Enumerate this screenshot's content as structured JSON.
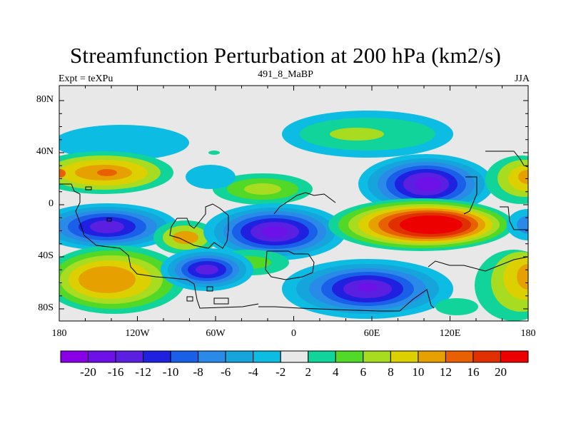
{
  "chart_data": {
    "type": "heatmap",
    "title": "Streamfunction Perturbation at 200 hPa (km2/s)",
    "subtitle_left": "Expt = teXPu",
    "subtitle_center": "491_8_MaBP",
    "subtitle_right": "JJA",
    "x_ticks": [
      "180",
      "120W",
      "60W",
      "0",
      "60E",
      "120E",
      "180"
    ],
    "y_ticks": [
      "80N",
      "40N",
      "0",
      "40S",
      "80S"
    ],
    "colorbar": {
      "labels": [
        "-20",
        "-16",
        "-12",
        "-10",
        "-8",
        "-6",
        "-4",
        "-2",
        "2",
        "4",
        "6",
        "8",
        "10",
        "12",
        "16",
        "20"
      ],
      "colors": [
        "#8a00e6",
        "#6e10e8",
        "#5a1fe0",
        "#2020e0",
        "#1a5fe8",
        "#2a8ae8",
        "#15a4dc",
        "#0cbce2",
        "#e8e8e8",
        "#10d49a",
        "#52d826",
        "#a8dc20",
        "#dcd000",
        "#e6a000",
        "#e86000",
        "#e03000",
        "#ec0000"
      ]
    },
    "cells": [
      {
        "lon": -175,
        "lat": 22,
        "value": 10
      },
      {
        "lon": -140,
        "lat": 22,
        "value": 14
      },
      {
        "lon": -138,
        "lat": -15,
        "value": -16
      },
      {
        "lon": -155,
        "lat": -55,
        "value": 12
      },
      {
        "lon": -78,
        "lat": -50,
        "value": -16
      },
      {
        "lon": -85,
        "lat": -22,
        "value": 10
      },
      {
        "lon": -15,
        "lat": -20,
        "value": -18
      },
      {
        "lon": -20,
        "lat": 10,
        "value": 8
      },
      {
        "lon": -10,
        "lat": -42,
        "value": 4
      },
      {
        "lon": 40,
        "lat": 50,
        "value": 6
      },
      {
        "lon": 60,
        "lat": -60,
        "value": -18
      },
      {
        "lon": 95,
        "lat": 15,
        "value": -18
      },
      {
        "lon": 100,
        "lat": -15,
        "value": 20
      },
      {
        "lon": 172,
        "lat": 20,
        "value": 12
      },
      {
        "lon": 172,
        "lat": -40,
        "value": 10
      },
      {
        "lon": 175,
        "lat": -15,
        "value": -10
      }
    ]
  }
}
